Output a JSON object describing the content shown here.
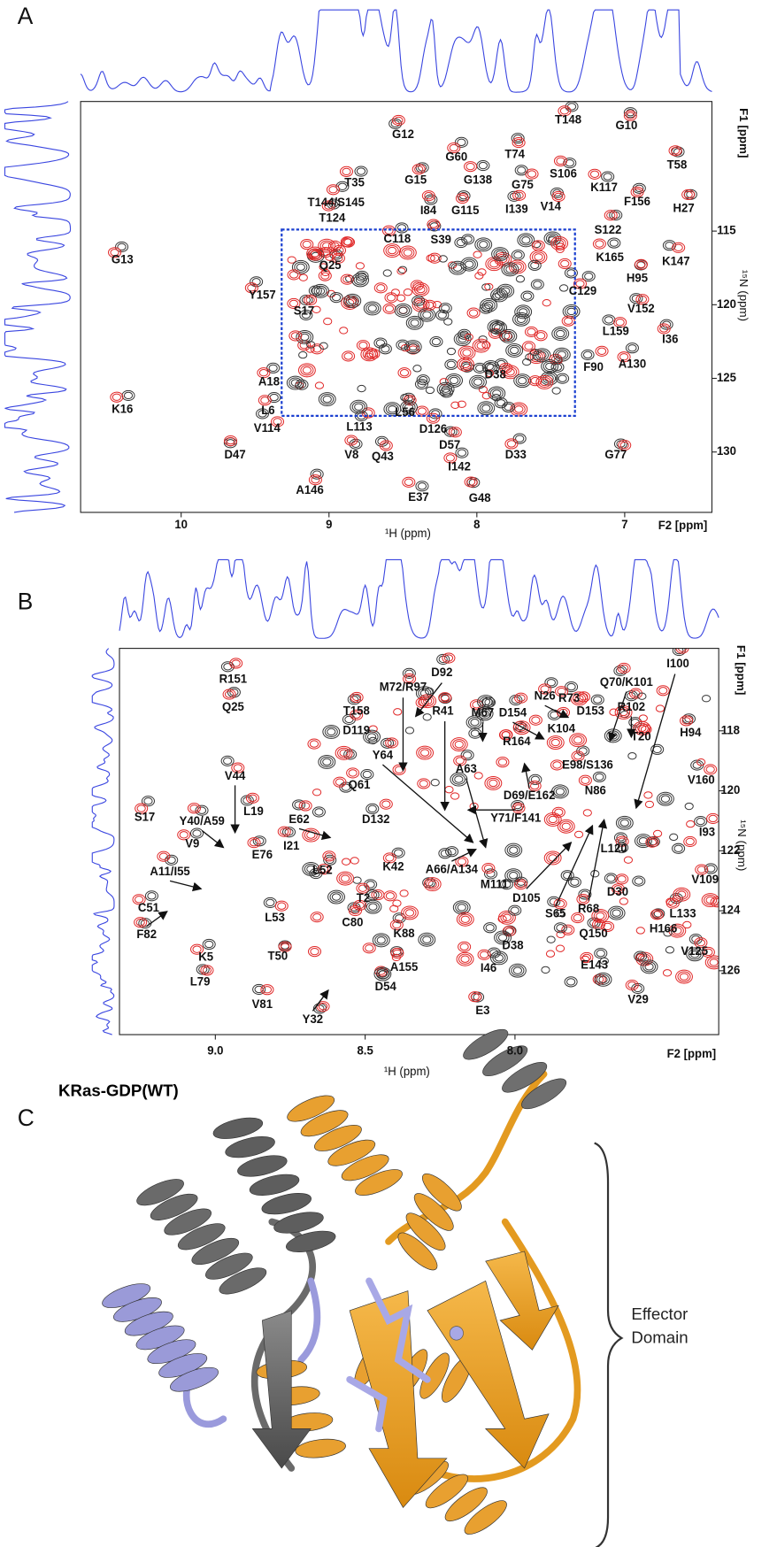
{
  "panels": [
    {
      "label": "A",
      "x_axis_label": "¹H (ppm)",
      "y_axis_label": "¹⁵N (ppm)",
      "x_dim_label": "F2 [ppm]",
      "y_dim_label": "F1 [ppm]",
      "xlim": [
        10.68,
        6.41
      ],
      "ylim": [
        106.2,
        134.1
      ],
      "xticks": [
        10,
        9,
        8,
        7
      ],
      "yticks": [
        115,
        120,
        125,
        130
      ],
      "peaks": [
        "G12",
        "T148",
        "G10",
        "G60",
        "T74",
        "T35",
        "G15",
        "S106",
        "G138",
        "G75",
        "K117",
        "T58",
        "T144/S145",
        "I84",
        "G115",
        "I139",
        "V14",
        "F156",
        "H27",
        "T124",
        "C118",
        "S39",
        "S122",
        "G13",
        "Q25",
        "K165",
        "K147",
        "H95",
        "C129",
        "Y157",
        "S17",
        "V152",
        "I36",
        "L159",
        "A130",
        "F90",
        "D38",
        "A18",
        "K16",
        "L6",
        "L56",
        "V114",
        "L113",
        "D126",
        "V8",
        "Q43",
        "D57",
        "D33",
        "D47",
        "I142",
        "G77",
        "A146",
        "E37",
        "G48"
      ]
    },
    {
      "label": "B",
      "x_axis_label": "¹H (ppm)",
      "y_axis_label": "¹⁵N (ppm)",
      "x_dim_label": "F2 [ppm]",
      "y_dim_label": "F1 [ppm]",
      "xlim": [
        9.32,
        7.32
      ],
      "ylim": [
        115.25,
        128.13
      ],
      "xticks": [
        {
          "value": 9,
          "label": "9.0"
        },
        8.5,
        {
          "value": 8,
          "label": "8.0"
        }
      ],
      "yticks": [
        118,
        120,
        122,
        124,
        126
      ],
      "peaks": [
        "R151",
        "Q25",
        "D92",
        "N26",
        "R73",
        "Q70/K101",
        "I100",
        "M72/R97",
        "D154",
        "R102",
        "T158",
        "R41",
        "M67",
        "D153",
        "T20",
        "D119",
        "K104",
        "H94",
        "R164",
        "Y64",
        "E98/S136",
        "Q61",
        "A63",
        "N86",
        "V160",
        "D69/E162",
        "S17",
        "Y40/A59",
        "V44",
        "L19",
        "E62",
        "I21",
        "D132",
        "Y71/F141",
        "I93",
        "V9",
        "K42",
        "L120",
        "E76",
        "A66/A134",
        "V109",
        "A11/I55",
        "L52",
        "T2",
        "M111",
        "D30",
        "C51",
        "L53",
        "D105",
        "S65",
        "R68",
        "L133",
        "C80",
        "K88",
        "Q150",
        "H166",
        "F82",
        "K5",
        "D38",
        "V125",
        "A155",
        "E143",
        "T50",
        "L79",
        "I46",
        "D54",
        "V81",
        "V29",
        "Y32",
        "E3"
      ]
    },
    {
      "label": "C",
      "title": "KRas-GDP(WT)",
      "annotation": "Effector Domain"
    }
  ]
}
